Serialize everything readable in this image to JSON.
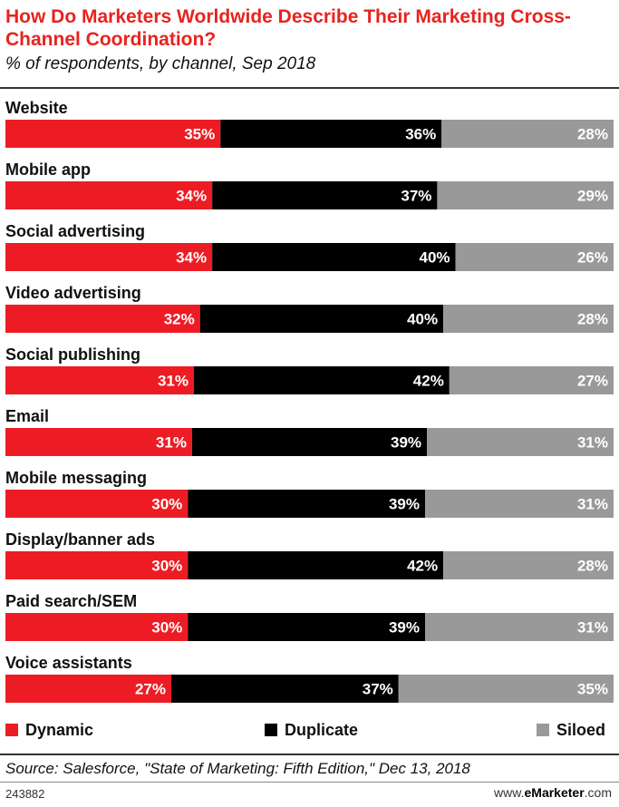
{
  "chart_data": {
    "type": "bar",
    "orientation": "horizontal-stacked",
    "title": "How Do Marketers Worldwide Describe Their Marketing Cross-Channel Coordination?",
    "subtitle": "% of respondents, by channel, Sep 2018",
    "categories": [
      "Website",
      "Mobile app",
      "Social advertising",
      "Video advertising",
      "Social publishing",
      "Email",
      "Mobile messaging",
      "Display/banner ads",
      "Paid search/SEM",
      "Voice assistants"
    ],
    "series": [
      {
        "name": "Dynamic",
        "color": "#ed1c24",
        "values": [
          35,
          34,
          34,
          32,
          31,
          31,
          30,
          30,
          30,
          27
        ]
      },
      {
        "name": "Duplicate",
        "color": "#000000",
        "values": [
          36,
          37,
          40,
          40,
          42,
          39,
          39,
          42,
          39,
          37
        ]
      },
      {
        "name": "Siloed",
        "color": "#999999",
        "values": [
          28,
          29,
          26,
          28,
          27,
          31,
          31,
          28,
          31,
          35
        ]
      }
    ],
    "value_suffix": "%",
    "legend": "bottom"
  },
  "source": "Source: Salesforce, \"State of Marketing: Fifth Edition,\" Dec 13, 2018",
  "footer": {
    "id": "243882",
    "brand_prefix": "www.",
    "brand_bold": "eMarketer",
    "brand_suffix": ".com"
  }
}
